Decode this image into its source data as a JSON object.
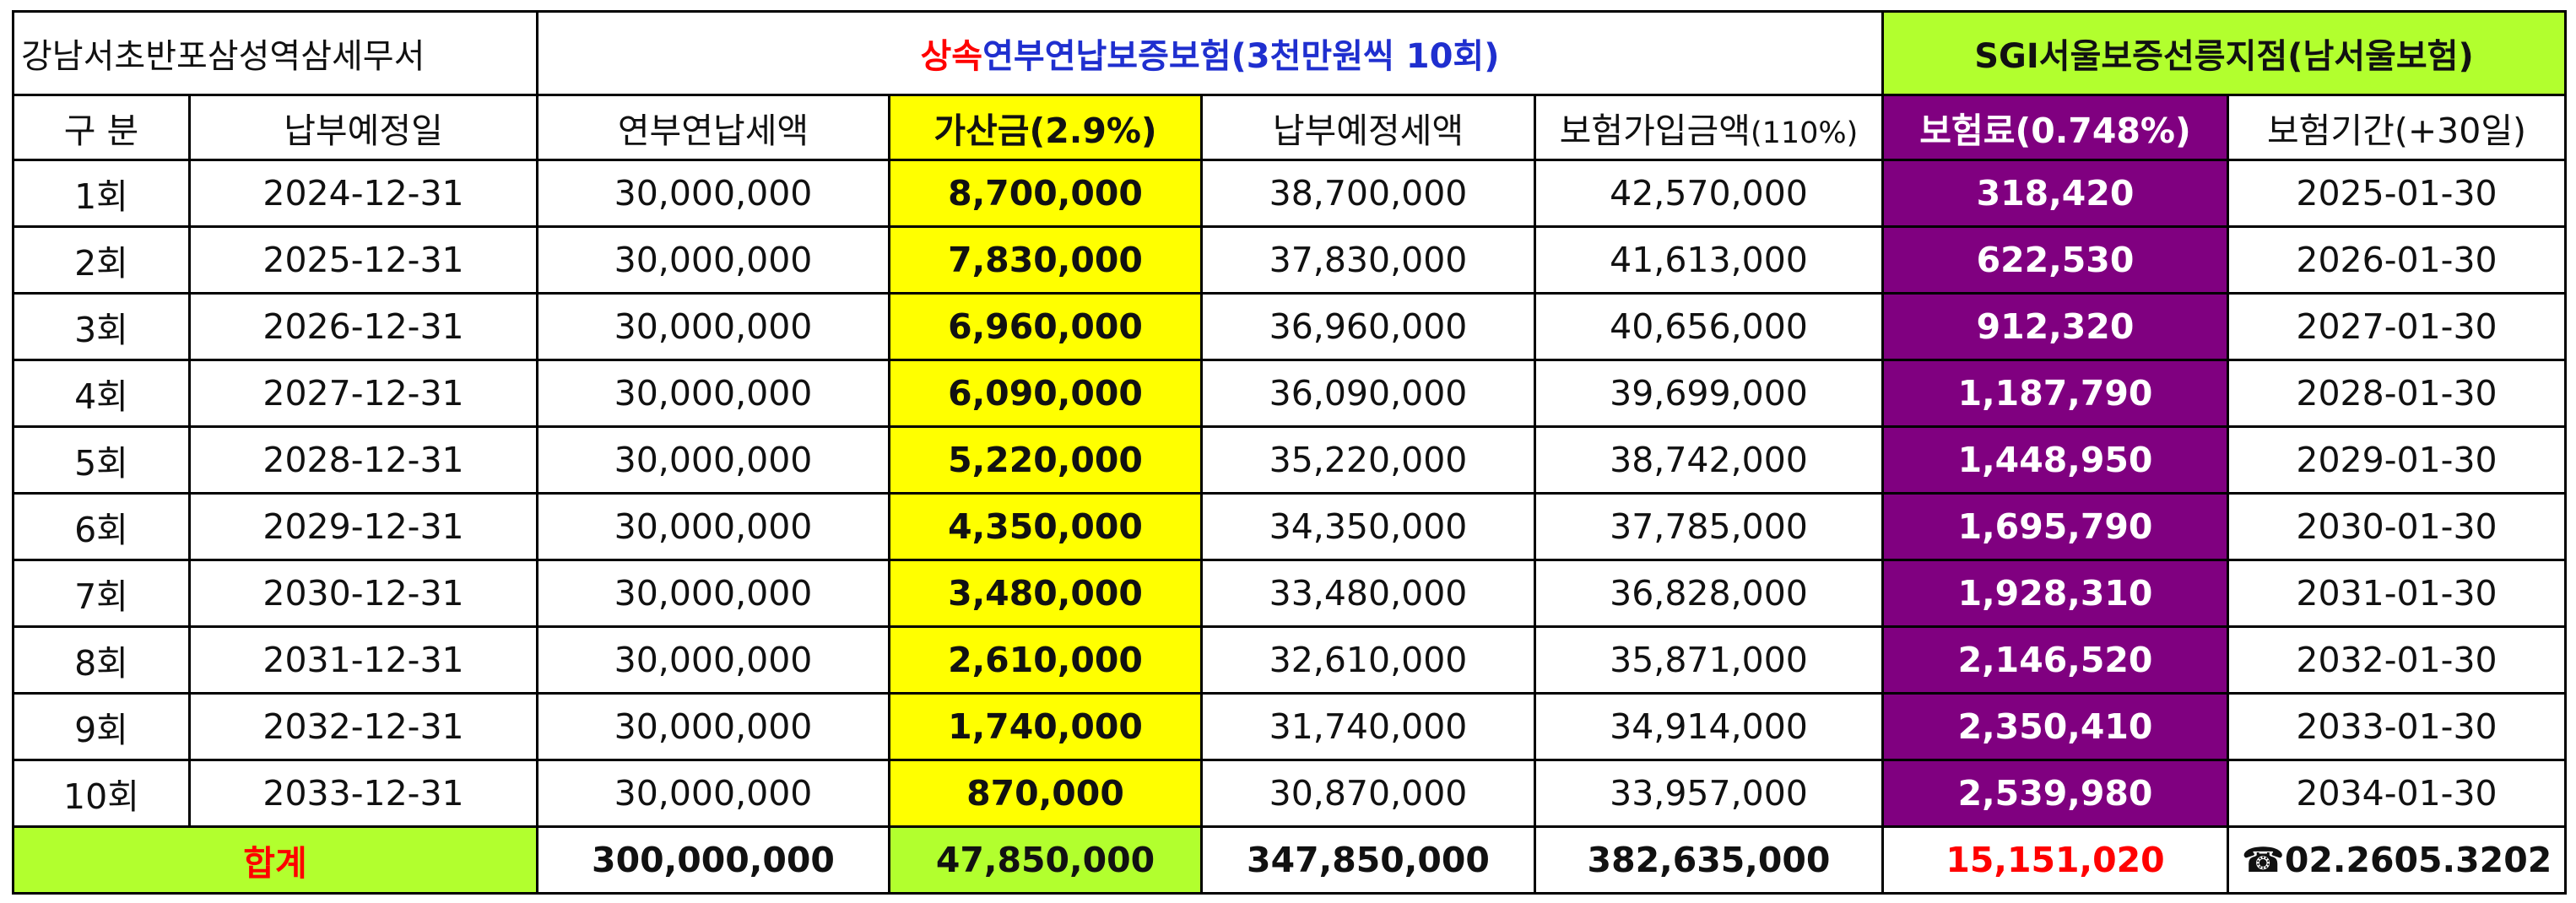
{
  "office": "강남서초반포삼성역삼세무서",
  "title_red": "상속",
  "title_blue": "연부연납보증보험(3천만원씩 10회)",
  "branch": "SGI서울보증선릉지점(남서울보험)",
  "headers": {
    "division": "구 분",
    "due_date": "납부예정일",
    "installment": "연부연납세액",
    "surcharge": "가산금(2.9%)",
    "scheduled_tax": "납부예정세액",
    "insured_amount_main": "보험가입금액",
    "insured_amount_pct": "(110%)",
    "premium": "보험료(0.748%)",
    "period": "보험기간(+30일)"
  },
  "rows": [
    {
      "no": "1회",
      "due": "2024-12-31",
      "installment": "30,000,000",
      "surcharge": "8,700,000",
      "scheduled": "38,700,000",
      "insured": "42,570,000",
      "premium": "318,420",
      "period": "2025-01-30"
    },
    {
      "no": "2회",
      "due": "2025-12-31",
      "installment": "30,000,000",
      "surcharge": "7,830,000",
      "scheduled": "37,830,000",
      "insured": "41,613,000",
      "premium": "622,530",
      "period": "2026-01-30"
    },
    {
      "no": "3회",
      "due": "2026-12-31",
      "installment": "30,000,000",
      "surcharge": "6,960,000",
      "scheduled": "36,960,000",
      "insured": "40,656,000",
      "premium": "912,320",
      "period": "2027-01-30"
    },
    {
      "no": "4회",
      "due": "2027-12-31",
      "installment": "30,000,000",
      "surcharge": "6,090,000",
      "scheduled": "36,090,000",
      "insured": "39,699,000",
      "premium": "1,187,790",
      "period": "2028-01-30"
    },
    {
      "no": "5회",
      "due": "2028-12-31",
      "installment": "30,000,000",
      "surcharge": "5,220,000",
      "scheduled": "35,220,000",
      "insured": "38,742,000",
      "premium": "1,448,950",
      "period": "2029-01-30"
    },
    {
      "no": "6회",
      "due": "2029-12-31",
      "installment": "30,000,000",
      "surcharge": "4,350,000",
      "scheduled": "34,350,000",
      "insured": "37,785,000",
      "premium": "1,695,790",
      "period": "2030-01-30"
    },
    {
      "no": "7회",
      "due": "2030-12-31",
      "installment": "30,000,000",
      "surcharge": "3,480,000",
      "scheduled": "33,480,000",
      "insured": "36,828,000",
      "premium": "1,928,310",
      "period": "2031-01-30"
    },
    {
      "no": "8회",
      "due": "2031-12-31",
      "installment": "30,000,000",
      "surcharge": "2,610,000",
      "scheduled": "32,610,000",
      "insured": "35,871,000",
      "premium": "2,146,520",
      "period": "2032-01-30"
    },
    {
      "no": "9회",
      "due": "2032-12-31",
      "installment": "30,000,000",
      "surcharge": "1,740,000",
      "scheduled": "31,740,000",
      "insured": "34,914,000",
      "premium": "2,350,410",
      "period": "2033-01-30"
    },
    {
      "no": "10회",
      "due": "2033-12-31",
      "installment": "30,000,000",
      "surcharge": "870,000",
      "scheduled": "30,870,000",
      "insured": "33,957,000",
      "premium": "2,539,980",
      "period": "2034-01-30"
    }
  ],
  "total": {
    "label": "합계",
    "installment": "300,000,000",
    "surcharge": "47,850,000",
    "scheduled": "347,850,000",
    "insured": "382,635,000",
    "premium": "15,151,020",
    "phone": "☎02.2605.3202"
  },
  "colors": {
    "surcharge_highlight": "#ffff00",
    "premium_highlight": "#800080",
    "branch_and_total_highlight": "#b2ff2e",
    "red_text": "#ff0000",
    "blue_text": "#1f2fcf"
  }
}
